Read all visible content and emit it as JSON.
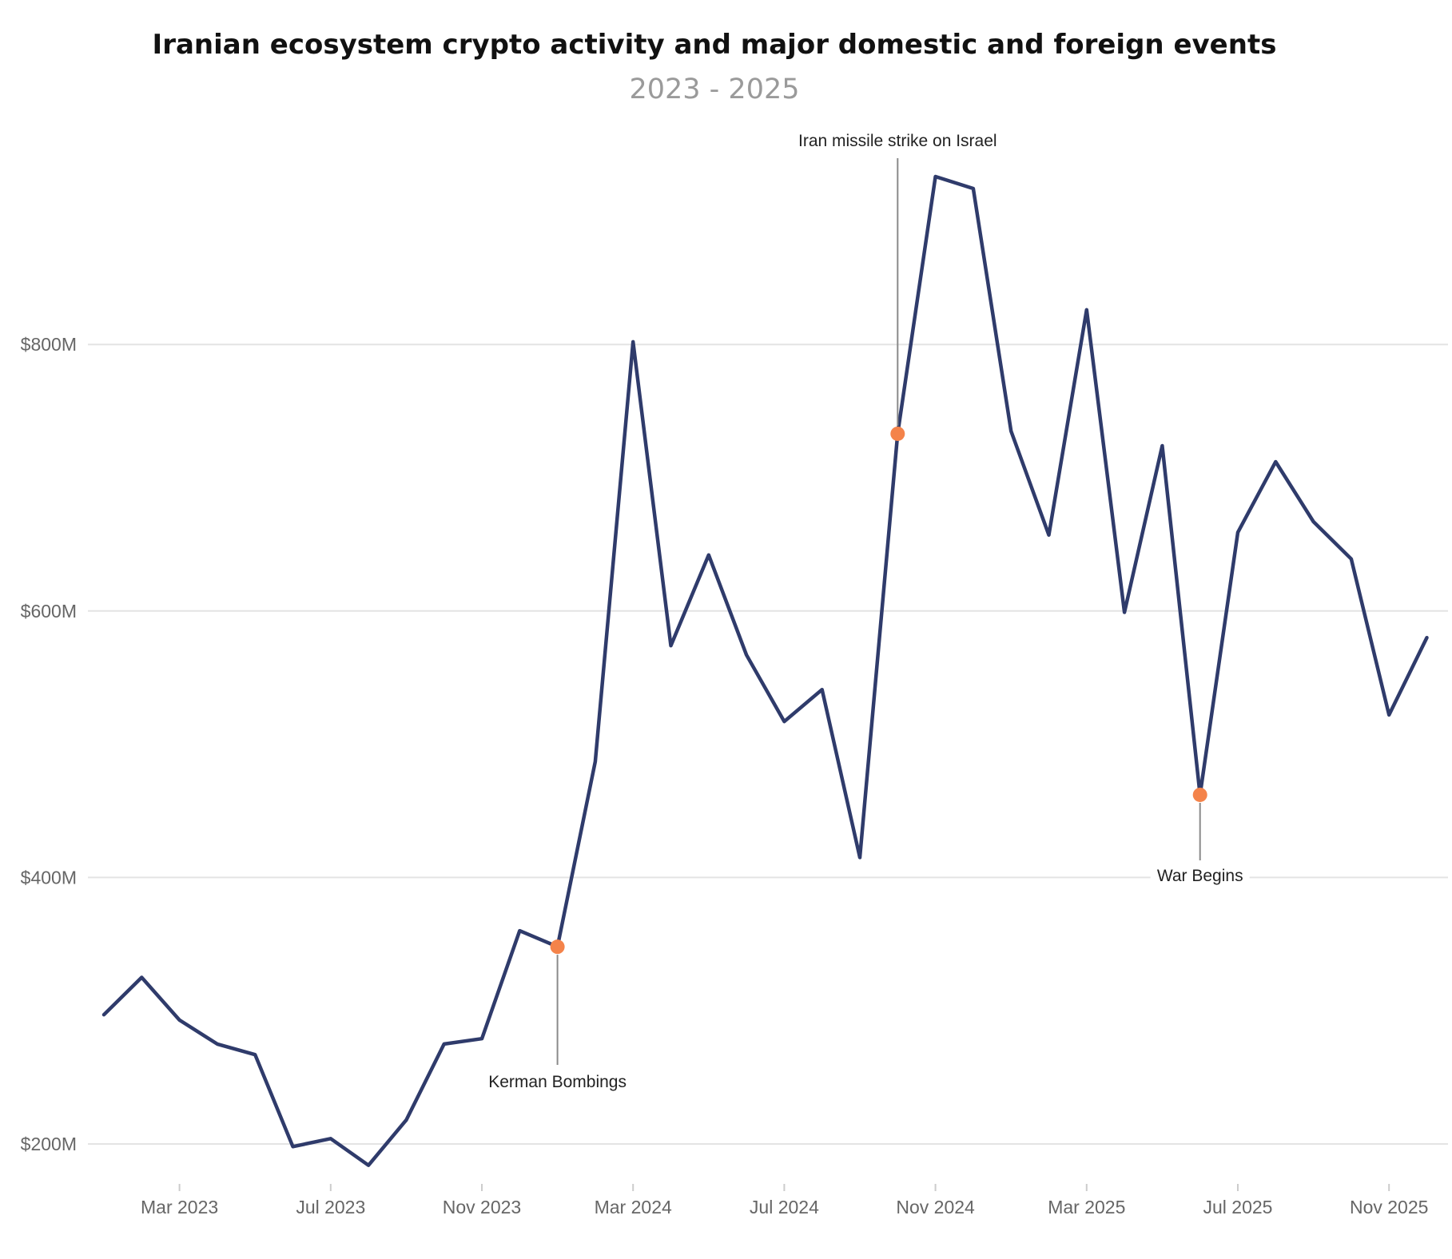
{
  "chart_data": {
    "type": "line",
    "title": "Iranian ecosystem crypto activity and major domestic and foreign events",
    "subtitle": "2023 - 2025",
    "xlabel": "",
    "ylabel": "",
    "ylim": [
      170,
      930
    ],
    "y_ticks": [
      {
        "value": 200,
        "label": "$200M"
      },
      {
        "value": 400,
        "label": "$400M"
      },
      {
        "value": 600,
        "label": "$600M"
      },
      {
        "value": 800,
        "label": "$800M"
      }
    ],
    "x_ticks": [
      {
        "month": 2,
        "label": "Mar 2023"
      },
      {
        "month": 6,
        "label": "Jul 2023"
      },
      {
        "month": 10,
        "label": "Nov 2023"
      },
      {
        "month": 14,
        "label": "Mar 2024"
      },
      {
        "month": 18,
        "label": "Jul 2024"
      },
      {
        "month": 22,
        "label": "Nov 2024"
      },
      {
        "month": 26,
        "label": "Mar 2025"
      },
      {
        "month": 30,
        "label": "Jul 2025"
      },
      {
        "month": 34,
        "label": "Nov 2025"
      }
    ],
    "grid": true,
    "series": [
      {
        "color": "#2f3b6b",
        "x": [
          "Jan 2023",
          "Feb 2023",
          "Mar 2023",
          "Apr 2023",
          "May 2023",
          "Jun 2023",
          "Jul 2023",
          "Aug 2023",
          "Sep 2023",
          "Oct 2023",
          "Nov 2023",
          "Dec 2023",
          "Jan 2024",
          "Feb 2024",
          "Mar 2024",
          "Apr 2024",
          "May 2024",
          "Jun 2024",
          "Jul 2024",
          "Aug 2024",
          "Sep 2024",
          "Oct 2024",
          "Nov 2024",
          "Dec 2024",
          "Jan 2025",
          "Feb 2025",
          "Mar 2025",
          "Apr 2025",
          "May 2025",
          "Jun 2025",
          "Jul 2025",
          "Aug 2025",
          "Sep 2025",
          "Oct 2025",
          "Nov 2025",
          "Dec 2025"
        ],
        "values": [
          297,
          325,
          293,
          275,
          267,
          198,
          204,
          184,
          218,
          275,
          279,
          360,
          348,
          487,
          802,
          574,
          642,
          567,
          517,
          541,
          415,
          733,
          926,
          917,
          735,
          657,
          826,
          599,
          724,
          462,
          659,
          712,
          667,
          639,
          522,
          580
        ]
      }
    ],
    "annotations": [
      {
        "index": 12,
        "label": "Kerman Bombings",
        "color": "#f4834a"
      },
      {
        "index": 21,
        "label": "Iran missile strike on Israel",
        "color": "#f4834a"
      },
      {
        "index": 29,
        "label": "War Begins",
        "color": "#f4834a"
      }
    ]
  }
}
